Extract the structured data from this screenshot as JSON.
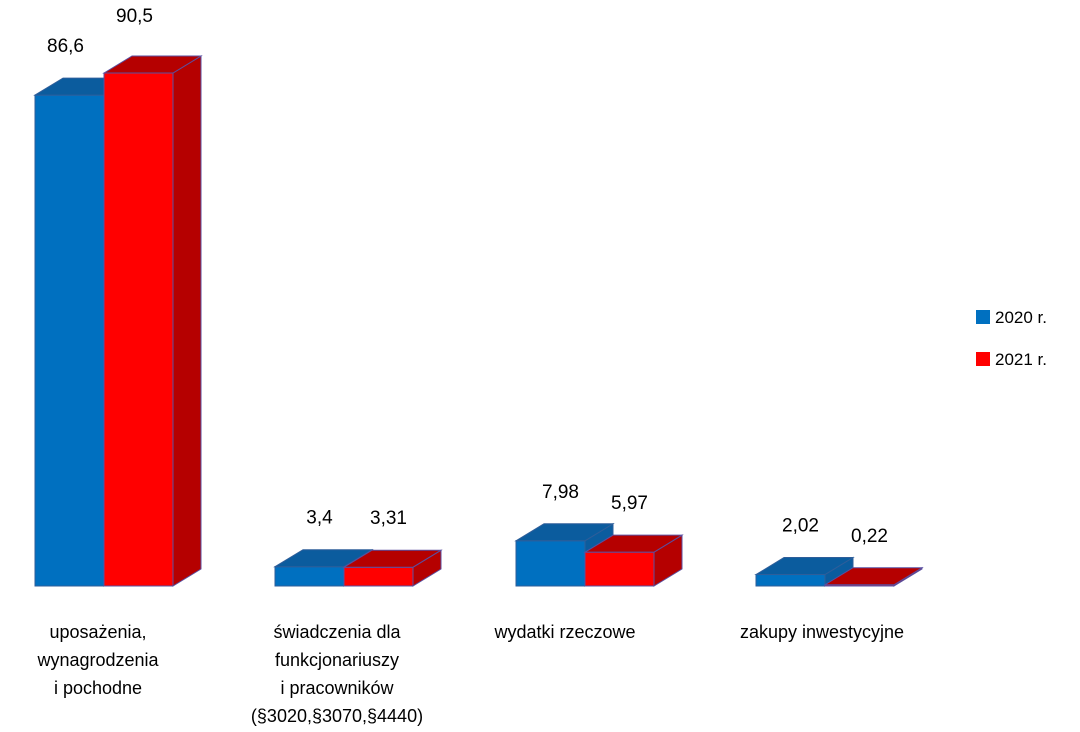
{
  "chart_data": {
    "type": "bar",
    "style": "3d-clustered-column",
    "categories": [
      [
        "uposażenia,",
        "wynagrodzenia",
        "i pochodne"
      ],
      [
        "świadczenia dla",
        "funkcjonariuszy",
        "i pracowników",
        "(§3020,§3070,§4440)"
      ],
      [
        "wydatki rzeczowe"
      ],
      [
        "zakupy inwestycyjne"
      ]
    ],
    "series": [
      {
        "name": "2020 r.",
        "color": "#0070C0",
        "values": [
          86.6,
          3.4,
          7.98,
          2.02
        ],
        "labels": [
          "86,6",
          "3,4",
          "7,98",
          "2,02"
        ]
      },
      {
        "name": "2021 r.",
        "color": "#FF0000",
        "values": [
          90.5,
          3.31,
          5.97,
          0.22
        ],
        "labels": [
          "90,5",
          "3,31",
          "5,97",
          "0,22"
        ]
      }
    ],
    "ylim": [
      0,
      90.5
    ],
    "grid": false,
    "legend_position": "right"
  }
}
